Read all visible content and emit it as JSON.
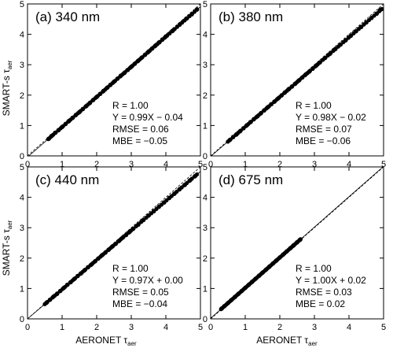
{
  "figure": {
    "ylabel": {
      "main": "SMART-s τ",
      "sub": "aer"
    },
    "xlabel": {
      "main": "AERONET τ",
      "sub": "aer"
    }
  },
  "chart_data": [
    {
      "type": "scatter",
      "title": "(a) 340 nm",
      "xlim": [
        0,
        5
      ],
      "ylim": [
        0,
        5
      ],
      "xticks": [
        "0",
        "1",
        "2",
        "3",
        "4",
        "5"
      ],
      "yticks": [
        "0",
        "1",
        "2",
        "3",
        "4",
        "5"
      ],
      "stats": [
        "R = 1.00",
        "Y = 0.99X − 0.04",
        "RMSE =  0.06",
        "MBE =  −0.05"
      ],
      "fit": {
        "slope": 0.99,
        "intercept": -0.04
      },
      "x_range": [
        0.6,
        4.9
      ],
      "points": [
        [
          0.62,
          0.57
        ],
        [
          0.7,
          0.66
        ],
        [
          0.8,
          0.76
        ],
        [
          0.9,
          0.85
        ],
        [
          1.0,
          0.95
        ],
        [
          1.1,
          1.05
        ],
        [
          1.2,
          1.15
        ],
        [
          1.3,
          1.25
        ],
        [
          1.4,
          1.35
        ],
        [
          1.5,
          1.44
        ],
        [
          1.6,
          1.54
        ],
        [
          1.7,
          1.64
        ],
        [
          1.8,
          1.74
        ],
        [
          1.9,
          1.84
        ],
        [
          2.0,
          1.94
        ],
        [
          2.1,
          2.04
        ],
        [
          2.2,
          2.14
        ],
        [
          2.3,
          2.24
        ],
        [
          2.4,
          2.34
        ],
        [
          2.5,
          2.44
        ],
        [
          2.6,
          2.54
        ],
        [
          2.7,
          2.64
        ],
        [
          2.8,
          2.73
        ],
        [
          2.9,
          2.83
        ],
        [
          3.0,
          2.93
        ],
        [
          3.1,
          3.03
        ],
        [
          3.2,
          3.13
        ],
        [
          3.3,
          3.23
        ],
        [
          3.4,
          3.33
        ],
        [
          3.5,
          3.43
        ],
        [
          3.6,
          3.53
        ],
        [
          3.7,
          3.63
        ],
        [
          3.8,
          3.73
        ],
        [
          3.9,
          3.83
        ],
        [
          4.0,
          3.93
        ],
        [
          4.2,
          4.12
        ],
        [
          4.4,
          4.32
        ],
        [
          4.6,
          4.52
        ],
        [
          4.75,
          4.66
        ],
        [
          4.9,
          4.82
        ]
      ]
    },
    {
      "type": "scatter",
      "title": "(b) 380 nm",
      "xlim": [
        0,
        5
      ],
      "ylim": [
        0,
        5
      ],
      "xticks": [
        "0",
        "1",
        "2",
        "3",
        "4",
        "5"
      ],
      "yticks": [
        "0",
        "1",
        "2",
        "3",
        "4",
        "5"
      ],
      "stats": [
        "R = 1.00",
        "Y = 0.98X − 0.02",
        "RMSE =  0.07",
        "MBE =  −0.06"
      ],
      "fit": {
        "slope": 0.98,
        "intercept": -0.02
      },
      "x_range": [
        0.5,
        4.95
      ],
      "points": [
        [
          0.55,
          0.52
        ],
        [
          0.65,
          0.62
        ],
        [
          0.75,
          0.71
        ],
        [
          0.85,
          0.81
        ],
        [
          0.95,
          0.91
        ],
        [
          1.05,
          1.01
        ],
        [
          1.15,
          1.11
        ],
        [
          1.25,
          1.21
        ],
        [
          1.35,
          1.3
        ],
        [
          1.45,
          1.4
        ],
        [
          1.55,
          1.5
        ],
        [
          1.65,
          1.6
        ],
        [
          1.75,
          1.7
        ],
        [
          1.85,
          1.79
        ],
        [
          1.95,
          1.89
        ],
        [
          2.05,
          1.99
        ],
        [
          2.15,
          2.09
        ],
        [
          2.25,
          2.19
        ],
        [
          2.35,
          2.28
        ],
        [
          2.45,
          2.38
        ],
        [
          2.55,
          2.48
        ],
        [
          2.65,
          2.58
        ],
        [
          2.75,
          2.68
        ],
        [
          2.85,
          2.77
        ],
        [
          2.95,
          2.87
        ],
        [
          3.05,
          2.97
        ],
        [
          3.15,
          3.07
        ],
        [
          3.3,
          3.22
        ],
        [
          3.45,
          3.36
        ],
        [
          3.6,
          3.51
        ],
        [
          3.75,
          3.66
        ],
        [
          3.9,
          3.8
        ],
        [
          4.05,
          3.95
        ],
        [
          4.2,
          4.1
        ],
        [
          4.35,
          4.24
        ],
        [
          4.5,
          4.39
        ],
        [
          4.65,
          4.54
        ],
        [
          4.8,
          4.68
        ],
        [
          4.9,
          4.8
        ]
      ]
    },
    {
      "type": "scatter",
      "title": "(c) 440 nm",
      "xlim": [
        0,
        5
      ],
      "ylim": [
        0,
        5
      ],
      "xticks": [
        "0",
        "1",
        "2",
        "3",
        "4",
        "5"
      ],
      "yticks": [
        "0",
        "1",
        "2",
        "3",
        "4",
        "5"
      ],
      "stats": [
        "R = 1.00",
        "Y = 0.97X + 0.00",
        "RMSE =  0.05",
        "MBE =  −0.04"
      ],
      "fit": {
        "slope": 0.97,
        "intercept": 0.0
      },
      "x_range": [
        0.5,
        4.9
      ],
      "points": [
        [
          0.55,
          0.53
        ],
        [
          0.65,
          0.63
        ],
        [
          0.75,
          0.73
        ],
        [
          0.85,
          0.82
        ],
        [
          0.95,
          0.92
        ],
        [
          1.05,
          1.02
        ],
        [
          1.15,
          1.12
        ],
        [
          1.25,
          1.21
        ],
        [
          1.35,
          1.31
        ],
        [
          1.45,
          1.41
        ],
        [
          1.55,
          1.5
        ],
        [
          1.65,
          1.6
        ],
        [
          1.75,
          1.7
        ],
        [
          1.85,
          1.79
        ],
        [
          1.95,
          1.89
        ],
        [
          2.05,
          1.99
        ],
        [
          2.15,
          2.09
        ],
        [
          2.25,
          2.18
        ],
        [
          2.35,
          2.28
        ],
        [
          2.45,
          2.38
        ],
        [
          2.55,
          2.47
        ],
        [
          2.65,
          2.57
        ],
        [
          2.75,
          2.67
        ],
        [
          2.85,
          2.76
        ],
        [
          2.95,
          2.86
        ],
        [
          3.05,
          2.96
        ],
        [
          3.2,
          3.1
        ],
        [
          3.35,
          3.25
        ],
        [
          3.5,
          3.4
        ],
        [
          3.65,
          3.54
        ],
        [
          3.8,
          3.69
        ],
        [
          3.95,
          3.83
        ],
        [
          4.1,
          3.98
        ],
        [
          4.25,
          4.12
        ],
        [
          4.4,
          4.27
        ],
        [
          4.55,
          4.41
        ],
        [
          4.7,
          4.56
        ],
        [
          4.85,
          4.7
        ]
      ]
    },
    {
      "type": "scatter",
      "title": "(d) 675 nm",
      "xlim": [
        0,
        5
      ],
      "ylim": [
        0,
        5
      ],
      "xticks": [
        "0",
        "1",
        "2",
        "3",
        "4",
        "5"
      ],
      "yticks": [
        "0",
        "1",
        "2",
        "3",
        "4",
        "5"
      ],
      "stats": [
        "R = 1.00",
        "Y = 1.00X + 0.02",
        "RMSE =  0.03",
        "MBE =  0.02"
      ],
      "fit": {
        "slope": 1.0,
        "intercept": 0.02
      },
      "x_range": [
        0.3,
        2.6
      ],
      "points": [
        [
          0.32,
          0.34
        ],
        [
          0.4,
          0.42
        ],
        [
          0.5,
          0.52
        ],
        [
          0.6,
          0.62
        ],
        [
          0.7,
          0.72
        ],
        [
          0.8,
          0.82
        ],
        [
          0.9,
          0.92
        ],
        [
          1.0,
          1.02
        ],
        [
          1.1,
          1.12
        ],
        [
          1.2,
          1.22
        ],
        [
          1.3,
          1.32
        ],
        [
          1.4,
          1.42
        ],
        [
          1.5,
          1.52
        ],
        [
          1.6,
          1.62
        ],
        [
          1.7,
          1.72
        ],
        [
          1.8,
          1.82
        ],
        [
          1.9,
          1.92
        ],
        [
          2.0,
          2.02
        ],
        [
          2.1,
          2.12
        ],
        [
          2.2,
          2.22
        ],
        [
          2.3,
          2.32
        ],
        [
          2.4,
          2.42
        ],
        [
          2.5,
          2.52
        ],
        [
          2.58,
          2.6
        ]
      ]
    }
  ]
}
